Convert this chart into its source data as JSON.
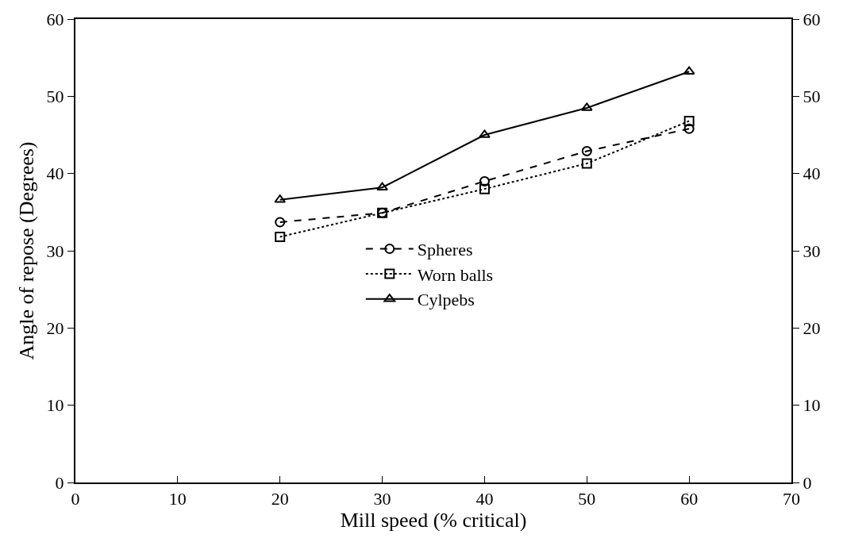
{
  "chart_data": {
    "type": "line",
    "xlabel": "Mill speed (% critical)",
    "ylabel": "Angle of repose (Degrees)",
    "x": [
      20,
      30,
      40,
      50,
      60
    ],
    "series": [
      {
        "name": "Spheres",
        "color": "#000000",
        "marker": "circle",
        "line_style": "dashed",
        "values": [
          33.7,
          34.9,
          39.0,
          42.9,
          45.8
        ]
      },
      {
        "name": "Worn balls",
        "color": "#000000",
        "marker": "square",
        "line_style": "dotted",
        "values": [
          31.8,
          34.9,
          38.0,
          41.3,
          46.8
        ]
      },
      {
        "name": "Cylpebs",
        "color": "#000000",
        "marker": "triangle",
        "line_style": "solid",
        "values": [
          36.6,
          38.2,
          45.0,
          48.5,
          53.2
        ]
      }
    ],
    "xlim": [
      0,
      70
    ],
    "xticks": [
      0,
      10,
      20,
      30,
      40,
      50,
      60,
      70
    ],
    "ylim": [
      0,
      60
    ],
    "yticks": [
      0,
      10,
      20,
      30,
      40,
      50,
      60
    ],
    "y2lim": [
      0,
      60
    ],
    "y2ticks": [
      0,
      10,
      20,
      30,
      40,
      50,
      60
    ],
    "legend": "center"
  }
}
